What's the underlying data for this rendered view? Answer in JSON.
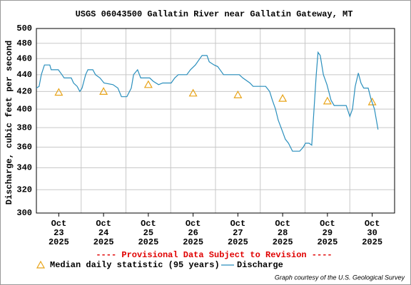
{
  "chart_data": {
    "type": "line",
    "title": "USGS 06043500 Gallatin River near Gallatin Gateway, MT",
    "ylabel": "Discharge, cubic feet per second",
    "log": true,
    "grid": true,
    "ylim": [
      300,
      500
    ],
    "yticks": [
      300,
      320,
      340,
      360,
      380,
      400,
      420,
      440,
      460,
      480,
      500
    ],
    "xlim": [
      0,
      8
    ],
    "xgrid": [
      1,
      2,
      3,
      4,
      5,
      6,
      7
    ],
    "xticks": [
      {
        "value": 0.5,
        "label": [
          "Oct",
          "23",
          "2025"
        ]
      },
      {
        "value": 1.5,
        "label": [
          "Oct",
          "24",
          "2025"
        ]
      },
      {
        "value": 2.5,
        "label": [
          "Oct",
          "25",
          "2025"
        ]
      },
      {
        "value": 3.5,
        "label": [
          "Oct",
          "26",
          "2025"
        ]
      },
      {
        "value": 4.5,
        "label": [
          "Oct",
          "27",
          "2025"
        ]
      },
      {
        "value": 5.5,
        "label": [
          "Oct",
          "28",
          "2025"
        ]
      },
      {
        "value": 6.5,
        "label": [
          "Oct",
          "29",
          "2025"
        ]
      },
      {
        "value": 7.5,
        "label": [
          "Oct",
          "30",
          "2025"
        ]
      }
    ],
    "notice": "---- Provisional Data Subject to Revision ----",
    "credit": "Graph courtesy of the U.S. Geological Survey",
    "series": [
      {
        "name": "Median daily statistic (95 years)",
        "color": "#e8a317",
        "marker": "triangle",
        "x": [
          0.5,
          1.5,
          2.5,
          3.5,
          4.5,
          5.5,
          6.5,
          7.5
        ],
        "values": [
          419,
          420,
          428,
          418,
          416,
          412,
          409,
          408
        ]
      },
      {
        "name": "Discharge",
        "color": "#2a8fbd",
        "marker": "line",
        "x": [
          0,
          0.06,
          0.11,
          0.18,
          0.3,
          0.33,
          0.49,
          0.57,
          0.62,
          0.78,
          0.83,
          0.91,
          0.97,
          1.02,
          1.1,
          1.15,
          1.26,
          1.32,
          1.42,
          1.51,
          1.71,
          1.82,
          1.9,
          2.02,
          2.12,
          2.17,
          2.26,
          2.33,
          2.53,
          2.61,
          2.73,
          2.82,
          3.01,
          3.09,
          3.17,
          3.36,
          3.44,
          3.55,
          3.65,
          3.7,
          3.81,
          3.86,
          3.97,
          4.05,
          4.18,
          4.53,
          4.61,
          4.77,
          4.84,
          5.12,
          5.21,
          5.27,
          5.34,
          5.4,
          5.48,
          5.56,
          5.63,
          5.72,
          5.88,
          5.96,
          6.01,
          6.09,
          6.15,
          6.2,
          6.25,
          6.29,
          6.34,
          6.41,
          6.49,
          6.58,
          6.65,
          6.92,
          7.0,
          7.06,
          7.12,
          7.19,
          7.25,
          7.31,
          7.41,
          7.47,
          7.55,
          7.63
        ],
        "values": [
          424,
          426,
          440,
          452,
          452,
          446,
          446,
          440,
          436,
          436,
          430,
          426,
          420,
          424,
          440,
          446,
          446,
          440,
          436,
          430,
          428,
          424,
          414,
          414,
          424,
          440,
          446,
          436,
          436,
          432,
          428,
          430,
          430,
          436,
          440,
          440,
          446,
          452,
          460,
          464,
          464,
          456,
          452,
          450,
          440,
          440,
          436,
          430,
          426,
          426,
          420,
          410,
          400,
          388,
          378,
          368,
          364,
          356,
          356,
          360,
          364,
          364,
          362,
          400,
          440,
          468,
          464,
          440,
          428,
          410,
          404,
          404,
          392,
          400,
          426,
          442,
          430,
          424,
          424,
          412,
          400,
          378
        ]
      }
    ]
  }
}
